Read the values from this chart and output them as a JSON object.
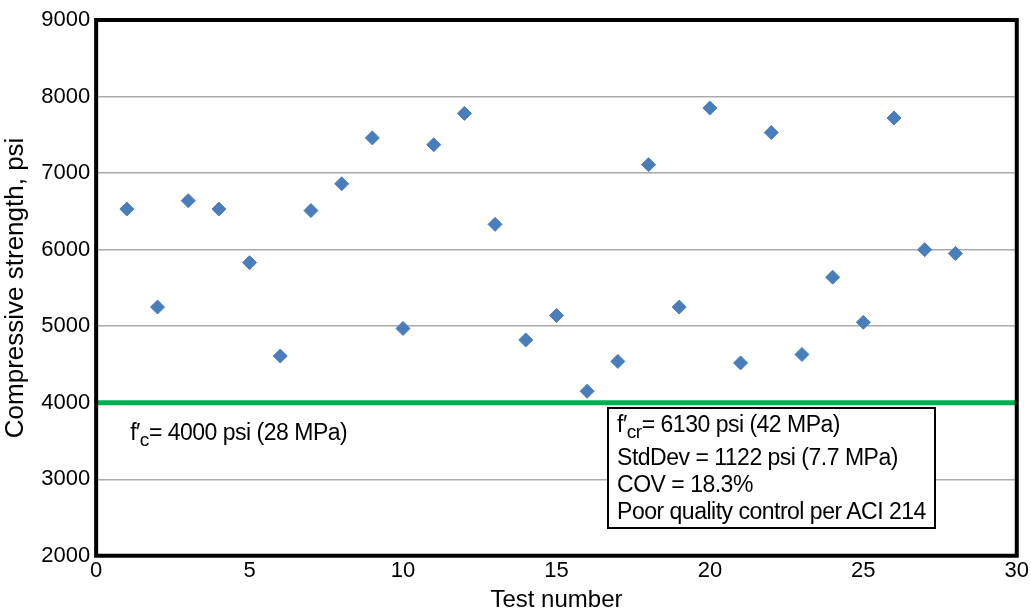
{
  "chart_data": {
    "type": "scatter",
    "xlabel": "Test number",
    "ylabel": "Compressive strength, psi",
    "x": [
      1,
      2,
      3,
      4,
      5,
      6,
      7,
      8,
      9,
      10,
      11,
      12,
      13,
      14,
      15,
      16,
      17,
      18,
      19,
      20,
      21,
      22,
      23,
      24,
      25,
      26,
      27,
      28
    ],
    "series": [
      {
        "color": "#4a7ebb",
        "values": [
          6530,
          5250,
          6640,
          6530,
          5830,
          4610,
          6510,
          6860,
          7460,
          4970,
          7370,
          7780,
          6330,
          4820,
          5140,
          4150,
          4540,
          7110,
          5250,
          7850,
          4520,
          7530,
          4630,
          5640,
          5050,
          7720,
          6000,
          5950
        ]
      }
    ],
    "xlim": [
      0,
      30
    ],
    "xticks": [
      0,
      5,
      10,
      15,
      20,
      25,
      30
    ],
    "ylim": [
      2000,
      9000
    ],
    "yticks": [
      2000,
      3000,
      4000,
      5000,
      6000,
      7000,
      8000,
      9000
    ],
    "grid": "y",
    "legend": false,
    "marker": "diamond",
    "ref_lines": [
      {
        "axis": "y",
        "value": 4000,
        "label": "f′$_{c}$= 4000 psi (28 MPa)",
        "color": "#00b050"
      }
    ],
    "annotations": [
      "f′$_{cr}$= 6130 psi (42 MPa)",
      "StdDev = 1122 psi (7.7 MPa)",
      "COV = 18.3%",
      "Poor quality control per ACI 214"
    ]
  }
}
